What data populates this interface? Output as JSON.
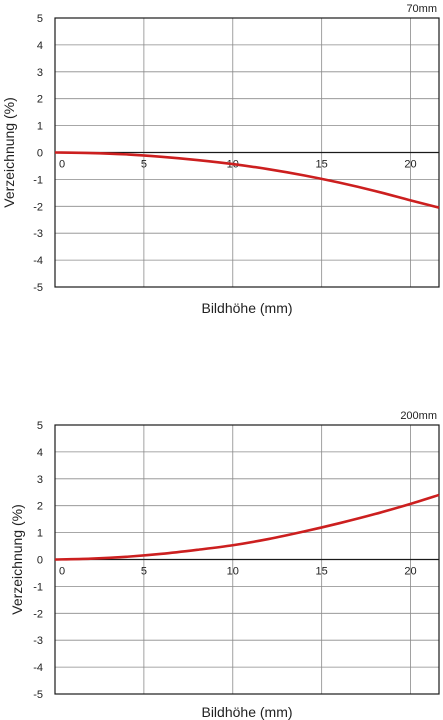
{
  "charts": [
    {
      "focal_label": "70mm",
      "xlabel": "Bildhöhe (mm)",
      "ylabel": "Verzeichnung (%)",
      "x_ticks": [
        "0",
        "5",
        "10",
        "15",
        "20"
      ],
      "y_ticks": [
        "5",
        "4",
        "3",
        "2",
        "1",
        "0",
        "-1",
        "-2",
        "-3",
        "-4",
        "-5"
      ]
    },
    {
      "focal_label": "200mm",
      "xlabel": "Bildhöhe (mm)",
      "ylabel": "Verzeichnung (%)",
      "x_ticks": [
        "0",
        "5",
        "10",
        "15",
        "20"
      ],
      "y_ticks": [
        "5",
        "4",
        "3",
        "2",
        "1",
        "0",
        "-1",
        "-2",
        "-3",
        "-4",
        "-5"
      ]
    }
  ],
  "chart_data": [
    {
      "type": "line",
      "title": "70mm",
      "xlabel": "Bildhöhe (mm)",
      "ylabel": "Verzeichnung (%)",
      "xlim": [
        0,
        21.6
      ],
      "ylim": [
        -5,
        5
      ],
      "x_ticks": [
        0,
        5,
        10,
        15,
        20
      ],
      "y_ticks": [
        5,
        4,
        3,
        2,
        1,
        0,
        -1,
        -2,
        -3,
        -4,
        -5
      ],
      "grid": true,
      "series": [
        {
          "color": "#cc1f1f",
          "x": [
            0,
            2,
            4,
            6,
            8,
            10,
            12,
            14,
            16,
            18,
            20,
            21.6
          ],
          "y": [
            0,
            -0.02,
            -0.07,
            -0.16,
            -0.28,
            -0.43,
            -0.62,
            -0.85,
            -1.12,
            -1.43,
            -1.78,
            -2.05
          ]
        }
      ]
    },
    {
      "type": "line",
      "title": "200mm",
      "xlabel": "Bildhöhe (mm)",
      "ylabel": "Verzeichnung (%)",
      "xlim": [
        0,
        21.6
      ],
      "ylim": [
        -5,
        5
      ],
      "x_ticks": [
        0,
        5,
        10,
        15,
        20
      ],
      "y_ticks": [
        5,
        4,
        3,
        2,
        1,
        0,
        -1,
        -2,
        -3,
        -4,
        -5
      ],
      "grid": true,
      "series": [
        {
          "color": "#cc1f1f",
          "x": [
            0,
            2,
            4,
            6,
            8,
            10,
            12,
            14,
            16,
            18,
            20,
            21.6
          ],
          "y": [
            0,
            0.03,
            0.1,
            0.21,
            0.36,
            0.53,
            0.76,
            1.04,
            1.35,
            1.69,
            2.07,
            2.4
          ]
        }
      ]
    }
  ]
}
